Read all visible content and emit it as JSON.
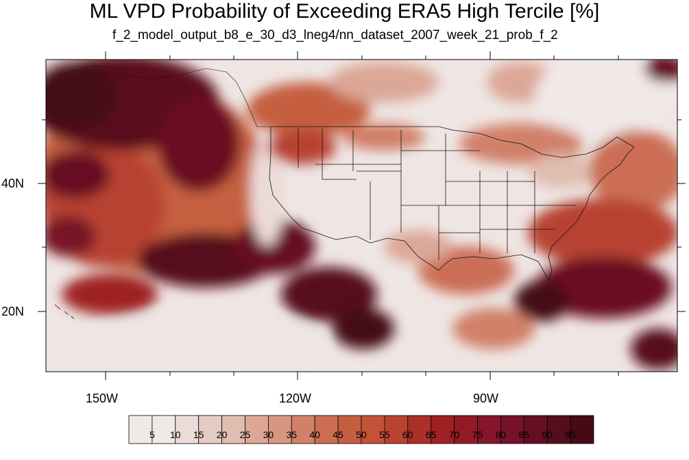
{
  "title": "ML VPD Probability of Exceeding ERA5 High Tercile [%]",
  "subtitle": "f_2_model_output_b8_e_30_d3_lneg4/nn_dataset_2007_week_21_prob_f_2",
  "map": {
    "projection": "cylindrical-equidistant",
    "lon_range": [
      -159.3,
      -60.6
    ],
    "lat_range": [
      10.8,
      59.3
    ],
    "x_ticks": [
      {
        "label": "150W"
      },
      {
        "label": "120W"
      },
      {
        "label": "90W"
      }
    ],
    "y_ticks": [
      {
        "label": "40N"
      },
      {
        "label": "20N"
      }
    ],
    "boundaries": "US states, coastlines"
  },
  "colorbar": {
    "levels": [
      "5",
      "10",
      "15",
      "20",
      "25",
      "30",
      "35",
      "40",
      "45",
      "50",
      "55",
      "60",
      "65",
      "70",
      "75",
      "80",
      "85",
      "90",
      "95"
    ],
    "colors": [
      "#f1e9e8",
      "#ecdcd8",
      "#e5cbc3",
      "#e0bdb0",
      "#dca797",
      "#d89580",
      "#d18069",
      "#cb6e54",
      "#c55e41",
      "#c25338",
      "#b84330",
      "#ab3029",
      "#9f2123",
      "#931a24",
      "#86152a",
      "#771228",
      "#660f22",
      "#560d1c",
      "#450a14"
    ]
  }
}
